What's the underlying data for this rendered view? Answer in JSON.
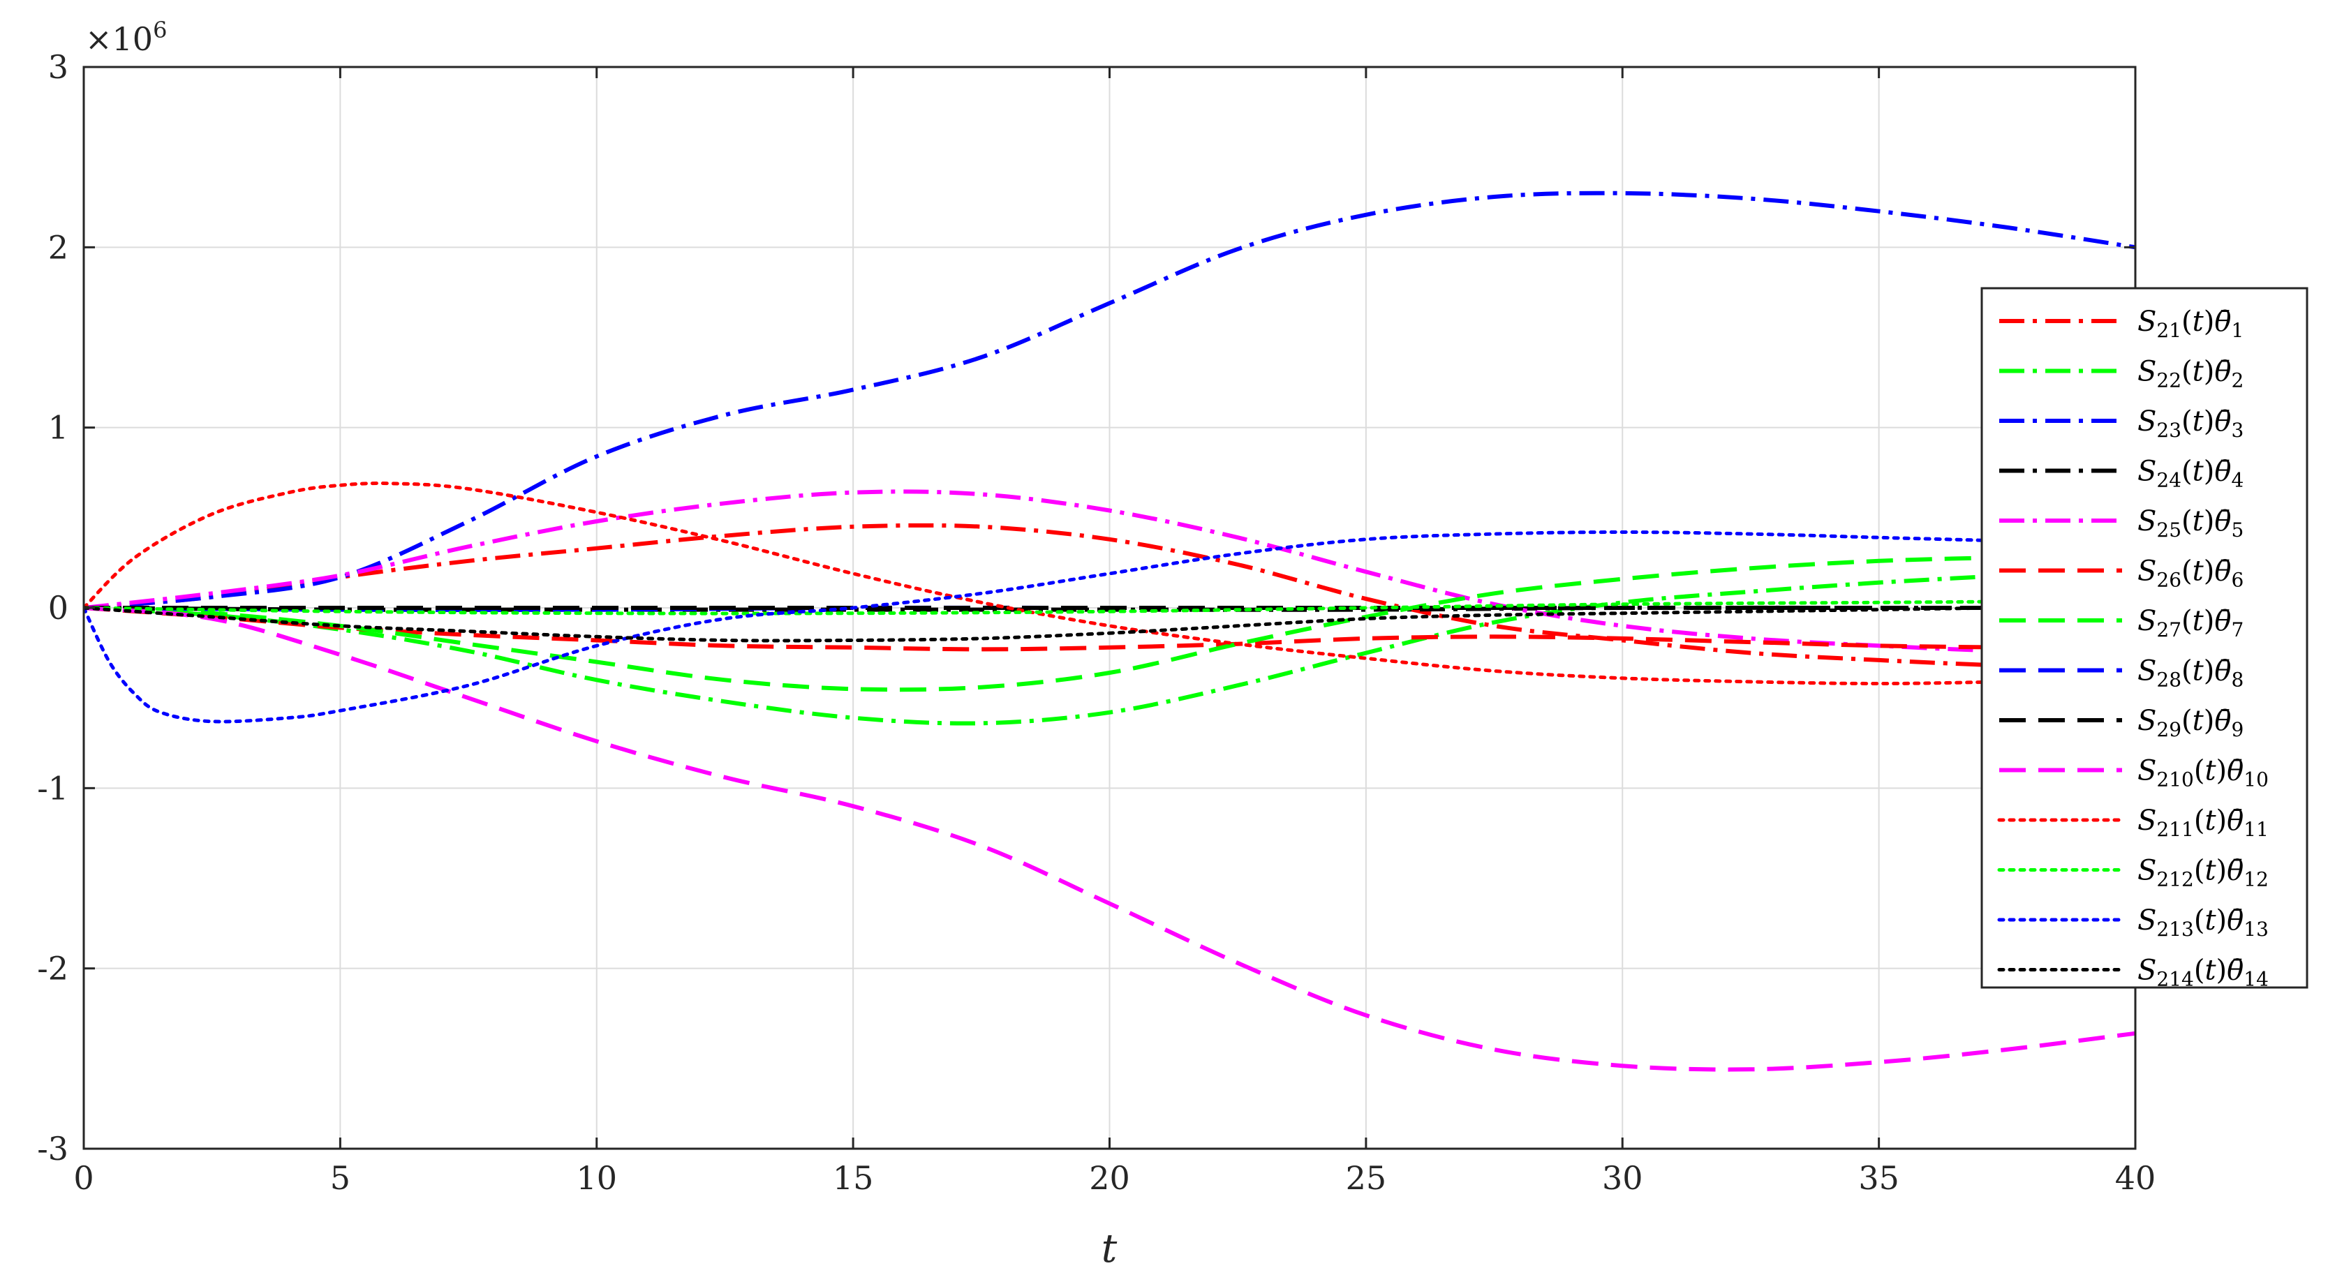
{
  "chart_data": {
    "type": "line",
    "title": "",
    "xlabel": "t",
    "ylabel": "",
    "y_exponent_label": "×10^6",
    "xlim": [
      0,
      40
    ],
    "ylim": [
      -3,
      3
    ],
    "y_scale_factor": 1000000,
    "xticks": [
      0,
      5,
      10,
      15,
      20,
      25,
      30,
      35,
      40
    ],
    "yticks": [
      -3,
      -2,
      -1,
      0,
      1,
      2,
      3
    ],
    "xtick_labels": [
      "0",
      "5",
      "10",
      "15",
      "20",
      "25",
      "30",
      "35",
      "40"
    ],
    "ytick_labels": [
      "-3",
      "-2",
      "-1",
      "0",
      "1",
      "2",
      "3"
    ],
    "grid": true,
    "legend_position": "right",
    "series": [
      {
        "name": "S21(t)θ̄1",
        "sub": "21",
        "theta_sub": "1",
        "color": "#ff0000",
        "style": "dashdot",
        "x": [
          0,
          2.5,
          5,
          7.5,
          10,
          12.5,
          15,
          17.5,
          20,
          22.5,
          25,
          27.5,
          30,
          32.5,
          35,
          37.5,
          40
        ],
        "y": [
          0,
          0.06,
          0.17,
          0.26,
          0.33,
          0.4,
          0.45,
          0.45,
          0.38,
          0.24,
          0.05,
          -0.1,
          -0.18,
          -0.25,
          -0.29,
          -0.32,
          -0.33
        ]
      },
      {
        "name": "S22(t)θ̄2",
        "sub": "22",
        "theta_sub": "2",
        "color": "#00ff00",
        "style": "dashdot",
        "x": [
          0,
          2.5,
          5,
          7.5,
          10,
          12.5,
          15,
          17.5,
          20,
          22.5,
          25,
          27.5,
          30,
          32.5,
          35,
          37.5,
          40
        ],
        "y": [
          0,
          -0.04,
          -0.12,
          -0.24,
          -0.4,
          -0.52,
          -0.61,
          -0.64,
          -0.58,
          -0.43,
          -0.25,
          -0.08,
          0.03,
          0.09,
          0.14,
          0.18,
          0.22
        ]
      },
      {
        "name": "S23(t)θ̄3",
        "sub": "23",
        "theta_sub": "3",
        "color": "#0000ff",
        "style": "dashdot",
        "x": [
          0,
          2.5,
          5,
          7.5,
          10,
          12.5,
          15,
          17.5,
          20,
          22.5,
          25,
          27.5,
          30,
          32.5,
          35,
          37.5,
          40
        ],
        "y": [
          0,
          0.06,
          0.17,
          0.48,
          0.84,
          1.07,
          1.21,
          1.39,
          1.69,
          1.99,
          2.18,
          2.28,
          2.3,
          2.27,
          2.2,
          2.11,
          2.0
        ]
      },
      {
        "name": "S24(t)θ̄4",
        "sub": "24",
        "theta_sub": "4",
        "color": "#000000",
        "style": "dashdot",
        "x": [
          0,
          5,
          10,
          15,
          20,
          25,
          30,
          35,
          40
        ],
        "y": [
          0,
          -0.01,
          -0.01,
          -0.01,
          -0.01,
          -0.01,
          0.0,
          0.0,
          0.0
        ]
      },
      {
        "name": "S25(t)θ̄5",
        "sub": "25",
        "theta_sub": "5",
        "color": "#ff00ff",
        "style": "dashdot",
        "x": [
          0,
          2.5,
          5,
          7.5,
          10,
          12.5,
          15,
          17.5,
          20,
          22.5,
          25,
          27.5,
          30,
          32.5,
          35,
          37.5,
          40
        ],
        "y": [
          0,
          0.08,
          0.18,
          0.34,
          0.48,
          0.58,
          0.64,
          0.63,
          0.54,
          0.39,
          0.2,
          0.02,
          -0.1,
          -0.17,
          -0.21,
          -0.24,
          -0.25
        ]
      },
      {
        "name": "S26(t)θ̄6",
        "sub": "26",
        "theta_sub": "6",
        "color": "#ff0000",
        "style": "dashed",
        "x": [
          0,
          2.5,
          5,
          7.5,
          10,
          12.5,
          15,
          17.5,
          20,
          22.5,
          25,
          27.5,
          30,
          32.5,
          35,
          37.5,
          40
        ],
        "y": [
          0,
          -0.05,
          -0.11,
          -0.15,
          -0.18,
          -0.21,
          -0.22,
          -0.23,
          -0.22,
          -0.2,
          -0.17,
          -0.16,
          -0.17,
          -0.19,
          -0.21,
          -0.22,
          -0.23
        ]
      },
      {
        "name": "S27(t)θ̄7",
        "sub": "27",
        "theta_sub": "7",
        "color": "#00ff00",
        "style": "dashed",
        "x": [
          0,
          2.5,
          5,
          7.5,
          10,
          12.5,
          15,
          17.5,
          20,
          22.5,
          25,
          27.5,
          30,
          32.5,
          35,
          37.5,
          40
        ],
        "y": [
          0,
          -0.03,
          -0.1,
          -0.2,
          -0.3,
          -0.4,
          -0.45,
          -0.44,
          -0.36,
          -0.2,
          -0.05,
          0.08,
          0.16,
          0.22,
          0.26,
          0.28,
          0.29
        ]
      },
      {
        "name": "S28(t)θ̄8",
        "sub": "28",
        "theta_sub": "8",
        "color": "#0000ff",
        "style": "dashed",
        "x": [
          0,
          5,
          10,
          15,
          20,
          25,
          30,
          35,
          40
        ],
        "y": [
          0,
          -0.01,
          -0.01,
          0.0,
          0.0,
          0.0,
          0.0,
          0.0,
          0.0
        ]
      },
      {
        "name": "S29(t)θ̄9",
        "sub": "29",
        "theta_sub": "9",
        "color": "#000000",
        "style": "dashed",
        "x": [
          0,
          5,
          10,
          15,
          20,
          25,
          30,
          35,
          40
        ],
        "y": [
          0,
          0.0,
          0.0,
          0.0,
          0.0,
          0.0,
          0.0,
          0.0,
          0.0
        ]
      },
      {
        "name": "S210(t)θ̄10",
        "sub": "210",
        "theta_sub": "10",
        "color": "#ff00ff",
        "style": "dashed",
        "x": [
          0,
          2.5,
          5,
          7.5,
          10,
          12.5,
          15,
          17.5,
          20,
          22.5,
          25,
          27.5,
          30,
          32.5,
          35,
          37.5,
          40
        ],
        "y": [
          0,
          -0.06,
          -0.26,
          -0.5,
          -0.74,
          -0.94,
          -1.1,
          -1.32,
          -1.64,
          -1.97,
          -2.26,
          -2.45,
          -2.54,
          -2.56,
          -2.52,
          -2.45,
          -2.36
        ]
      },
      {
        "name": "S211(t)θ̄11",
        "sub": "211",
        "theta_sub": "11",
        "color": "#ff0000",
        "style": "dotted",
        "x": [
          0,
          1,
          2.5,
          4,
          5,
          6,
          7.5,
          10,
          12.5,
          15,
          17.5,
          20,
          22.5,
          25,
          27.5,
          30,
          32.5,
          35,
          37.5,
          40
        ],
        "y": [
          0,
          0.28,
          0.52,
          0.64,
          0.68,
          0.69,
          0.66,
          0.53,
          0.37,
          0.19,
          0.03,
          -0.1,
          -0.2,
          -0.28,
          -0.35,
          -0.39,
          -0.41,
          -0.42,
          -0.41,
          -0.4
        ]
      },
      {
        "name": "S212(t)θ̄12",
        "sub": "212",
        "theta_sub": "12",
        "color": "#00ff00",
        "style": "dotted",
        "x": [
          0,
          5,
          10,
          15,
          20,
          25,
          30,
          35,
          40
        ],
        "y": [
          0,
          -0.02,
          -0.03,
          -0.03,
          -0.02,
          0.0,
          0.02,
          0.03,
          0.04
        ]
      },
      {
        "name": "S213(t)θ̄13",
        "sub": "213",
        "theta_sub": "13",
        "color": "#0000ff",
        "style": "dotted",
        "x": [
          0,
          0.5,
          1,
          1.5,
          2.5,
          4,
          5,
          7.5,
          10,
          12.5,
          15,
          17.5,
          20,
          22.5,
          25,
          27.5,
          30,
          32.5,
          35,
          37.5,
          40
        ],
        "y": [
          0,
          -0.3,
          -0.48,
          -0.58,
          -0.63,
          -0.61,
          -0.57,
          -0.43,
          -0.21,
          -0.06,
          0.0,
          0.08,
          0.19,
          0.3,
          0.38,
          0.41,
          0.42,
          0.41,
          0.39,
          0.37,
          0.34
        ]
      },
      {
        "name": "S214(t)θ̄14",
        "sub": "214",
        "theta_sub": "14",
        "color": "#000000",
        "style": "dotted",
        "x": [
          0,
          2.5,
          5,
          7.5,
          10,
          12.5,
          15,
          17.5,
          20,
          22.5,
          25,
          27.5,
          30,
          32.5,
          35,
          37.5,
          40
        ],
        "y": [
          0,
          -0.05,
          -0.1,
          -0.13,
          -0.16,
          -0.18,
          -0.18,
          -0.17,
          -0.14,
          -0.1,
          -0.06,
          -0.04,
          -0.03,
          -0.02,
          -0.01,
          0.0,
          0.0
        ]
      }
    ]
  }
}
